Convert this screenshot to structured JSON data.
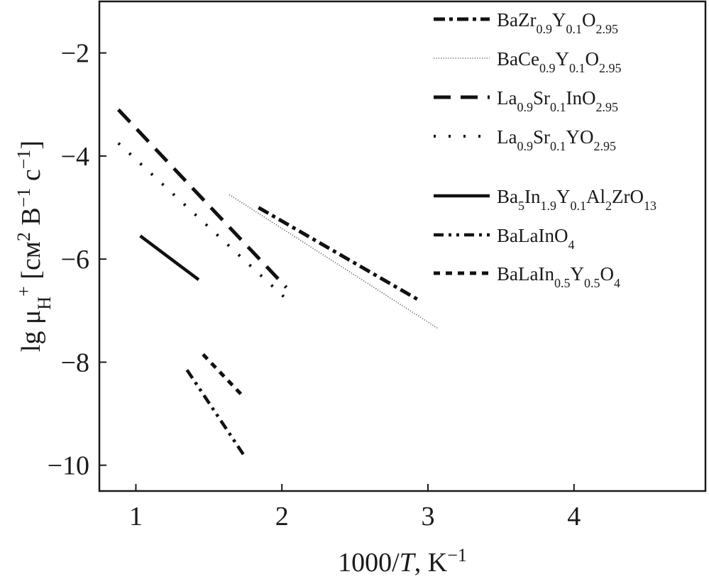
{
  "chart_data": {
    "type": "line",
    "xlabel": {
      "base": "1000/",
      "italic": "T",
      "rest": ", K",
      "sup": "−1"
    },
    "ylabel": {
      "parts": [
        {
          "t": "lg μ"
        },
        {
          "t": "H",
          "s": "sub"
        },
        {
          "t": "+",
          "s": "sup"
        },
        {
          "t": " [см"
        },
        {
          "t": "2",
          "s": "sup"
        },
        {
          "t": " В"
        },
        {
          "t": "−1",
          "s": "sup"
        },
        {
          "t": " с"
        },
        {
          "t": "−1",
          "s": "sup"
        },
        {
          "t": "]"
        }
      ]
    },
    "xlim": [
      0.75,
      4.9
    ],
    "ylim": [
      -10.5,
      -1.0
    ],
    "xticks": [
      {
        "value": 1,
        "label": "1"
      },
      {
        "value": 2,
        "label": "2"
      },
      {
        "value": 3,
        "label": "3"
      },
      {
        "value": 4,
        "label": "4"
      }
    ],
    "yticks": [
      {
        "value": -2,
        "label": "−2"
      },
      {
        "value": -4,
        "label": "−4"
      },
      {
        "value": -6,
        "label": "−6"
      },
      {
        "value": -8,
        "label": "−8"
      },
      {
        "value": -10,
        "label": "−10"
      }
    ],
    "grid": false,
    "legend_position": "top-right",
    "series": [
      {
        "name": "BaZr0.9Y0.1O2.95",
        "name_parts": [
          {
            "t": "BaZr"
          },
          {
            "t": "0.9",
            "s": "sub"
          },
          {
            "t": "Y"
          },
          {
            "t": "0.1",
            "s": "sub"
          },
          {
            "t": "O"
          },
          {
            "t": "2.95",
            "s": "sub"
          }
        ],
        "style": "dash-dot",
        "x": [
          1.84,
          2.94
        ],
        "y": [
          -5.0,
          -6.8
        ]
      },
      {
        "name": "BaCe0.9Y0.1O2.95",
        "name_parts": [
          {
            "t": "BaCe"
          },
          {
            "t": "0.9",
            "s": "sub"
          },
          {
            "t": "Y"
          },
          {
            "t": "0.1",
            "s": "sub"
          },
          {
            "t": "O"
          },
          {
            "t": "2.95",
            "s": "sub"
          }
        ],
        "style": "fine-dotted",
        "x": [
          1.64,
          3.07
        ],
        "y": [
          -4.75,
          -7.35
        ]
      },
      {
        "name": "La0.9Sr0.1InO2.95",
        "name_parts": [
          {
            "t": "La"
          },
          {
            "t": "0.9",
            "s": "sub"
          },
          {
            "t": "Sr"
          },
          {
            "t": "0.1",
            "s": "sub"
          },
          {
            "t": "InO"
          },
          {
            "t": "2.95",
            "s": "sub"
          }
        ],
        "style": "dashed",
        "x": [
          0.88,
          2.03
        ],
        "y": [
          -3.1,
          -6.55
        ]
      },
      {
        "name": "La0.9Sr0.1YO2.95",
        "name_parts": [
          {
            "t": "La"
          },
          {
            "t": "0.9",
            "s": "sub"
          },
          {
            "t": "Sr"
          },
          {
            "t": "0.1",
            "s": "sub"
          },
          {
            "t": "YO"
          },
          {
            "t": "2.95",
            "s": "sub"
          }
        ],
        "style": "dotted",
        "x": [
          0.88,
          2.07
        ],
        "y": [
          -3.75,
          -6.88
        ]
      },
      {
        "name": "Ba5In1.9Y0.1Al2ZrO13",
        "name_parts": [
          {
            "t": "Ba"
          },
          {
            "t": "5",
            "s": "sub"
          },
          {
            "t": "In"
          },
          {
            "t": "1.9",
            "s": "sub"
          },
          {
            "t": "Y"
          },
          {
            "t": "0.1",
            "s": "sub"
          },
          {
            "t": "Al"
          },
          {
            "t": "2",
            "s": "sub"
          },
          {
            "t": "ZrO"
          },
          {
            "t": "13",
            "s": "sub"
          }
        ],
        "style": "solid",
        "x": [
          1.03,
          1.43
        ],
        "y": [
          -5.55,
          -6.4
        ]
      },
      {
        "name": "BaLaInO4",
        "name_parts": [
          {
            "t": "BaLaInO"
          },
          {
            "t": "4",
            "s": "sub"
          }
        ],
        "style": "dash-dot-dot",
        "x": [
          1.35,
          1.75
        ],
        "y": [
          -8.15,
          -9.85
        ]
      },
      {
        "name": "BaLaIn0.5Y0.5O4",
        "name_parts": [
          {
            "t": "BaLaIn"
          },
          {
            "t": "0.5",
            "s": "sub"
          },
          {
            "t": "Y"
          },
          {
            "t": "0.5",
            "s": "sub"
          },
          {
            "t": "O"
          },
          {
            "t": "4",
            "s": "sub"
          }
        ],
        "style": "short-dashed",
        "x": [
          1.46,
          1.73
        ],
        "y": [
          -7.85,
          -8.65
        ]
      }
    ]
  }
}
